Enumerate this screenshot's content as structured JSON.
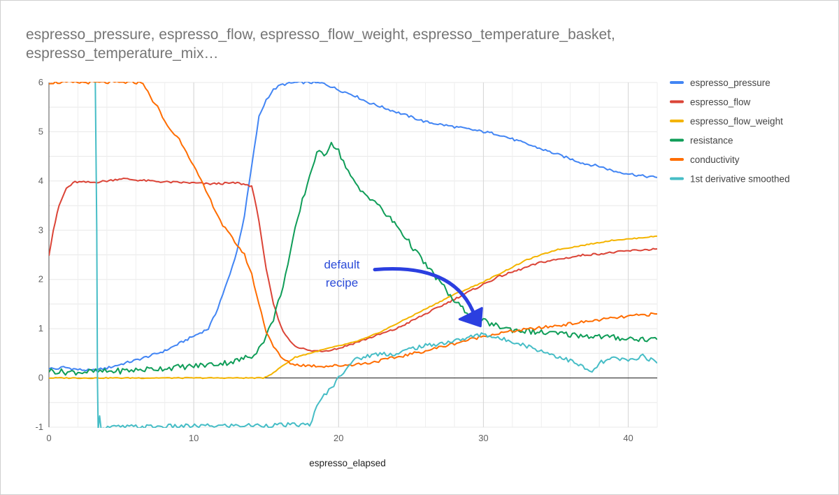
{
  "title": "espresso_pressure, espresso_flow, espresso_flow_weight, espresso_temperature_basket, espresso_temperature_mix…",
  "chart_data": {
    "type": "line",
    "title": "espresso_pressure, espresso_flow, espresso_flow_weight, espresso_temperature_basket, espresso_temperature_mix…",
    "xlabel": "espresso_elapsed",
    "ylabel": "",
    "xlim": [
      0,
      42
    ],
    "ylim": [
      -1,
      6
    ],
    "xticks": [
      0,
      10,
      20,
      30,
      40
    ],
    "yticks": [
      -1,
      0,
      1,
      2,
      3,
      4,
      5,
      6
    ],
    "grid": true,
    "legend_position": "right",
    "series": [
      {
        "name": "espresso_pressure",
        "color": "#4285f4",
        "points": [
          [
            0,
            0.2
          ],
          [
            0.5,
            0.18
          ],
          [
            1,
            0.22
          ],
          [
            2,
            0.17
          ],
          [
            3,
            0.15
          ],
          [
            4,
            0.2
          ],
          [
            5,
            0.28
          ],
          [
            6,
            0.36
          ],
          [
            7,
            0.45
          ],
          [
            8,
            0.55
          ],
          [
            9,
            0.7
          ],
          [
            10,
            0.85
          ],
          [
            11,
            1.0
          ],
          [
            11.5,
            1.3
          ],
          [
            12,
            1.7
          ],
          [
            12.5,
            2.1
          ],
          [
            13,
            2.6
          ],
          [
            13.5,
            3.3
          ],
          [
            14,
            4.3
          ],
          [
            14.5,
            5.3
          ],
          [
            15,
            5.65
          ],
          [
            15.5,
            5.85
          ],
          [
            16,
            5.95
          ],
          [
            17,
            6.0
          ],
          [
            18,
            6.0
          ],
          [
            19,
            5.98
          ],
          [
            20,
            5.85
          ],
          [
            21,
            5.75
          ],
          [
            22,
            5.6
          ],
          [
            23,
            5.5
          ],
          [
            24,
            5.4
          ],
          [
            25,
            5.3
          ],
          [
            26,
            5.2
          ],
          [
            27,
            5.15
          ],
          [
            28,
            5.1
          ],
          [
            29,
            5.05
          ],
          [
            30,
            5.0
          ],
          [
            31,
            4.95
          ],
          [
            32,
            4.85
          ],
          [
            33,
            4.75
          ],
          [
            34,
            4.65
          ],
          [
            35,
            4.55
          ],
          [
            36,
            4.45
          ],
          [
            37,
            4.35
          ],
          [
            38,
            4.3
          ],
          [
            39,
            4.2
          ],
          [
            40,
            4.15
          ],
          [
            41,
            4.1
          ],
          [
            42,
            4.07
          ]
        ]
      },
      {
        "name": "espresso_flow",
        "color": "#db4437",
        "points": [
          [
            0,
            2.5
          ],
          [
            0.3,
            3.0
          ],
          [
            0.7,
            3.5
          ],
          [
            1.2,
            3.85
          ],
          [
            1.8,
            3.98
          ],
          [
            3,
            3.97
          ],
          [
            4,
            4.0
          ],
          [
            5,
            4.05
          ],
          [
            6,
            4.02
          ],
          [
            7,
            4.0
          ],
          [
            8,
            3.98
          ],
          [
            9,
            3.97
          ],
          [
            10,
            3.96
          ],
          [
            11,
            3.94
          ],
          [
            12,
            3.95
          ],
          [
            13,
            3.96
          ],
          [
            14,
            3.9
          ],
          [
            14.5,
            3.2
          ],
          [
            15,
            2.2
          ],
          [
            15.5,
            1.5
          ],
          [
            16,
            1.05
          ],
          [
            16.5,
            0.8
          ],
          [
            17,
            0.65
          ],
          [
            18,
            0.55
          ],
          [
            19,
            0.55
          ],
          [
            20,
            0.6
          ],
          [
            21,
            0.7
          ],
          [
            22,
            0.8
          ],
          [
            23,
            0.9
          ],
          [
            24,
            1.0
          ],
          [
            25,
            1.15
          ],
          [
            26,
            1.3
          ],
          [
            27,
            1.45
          ],
          [
            28,
            1.6
          ],
          [
            29,
            1.75
          ],
          [
            30,
            1.9
          ],
          [
            31,
            2.05
          ],
          [
            32,
            2.15
          ],
          [
            33,
            2.25
          ],
          [
            34,
            2.35
          ],
          [
            35,
            2.4
          ],
          [
            36,
            2.45
          ],
          [
            37,
            2.5
          ],
          [
            38,
            2.52
          ],
          [
            39,
            2.55
          ],
          [
            40,
            2.58
          ],
          [
            41,
            2.6
          ],
          [
            42,
            2.62
          ]
        ]
      },
      {
        "name": "espresso_flow_weight",
        "color": "#f4b400",
        "points": [
          [
            0,
            0.0
          ],
          [
            5,
            0.0
          ],
          [
            10,
            0.0
          ],
          [
            14.8,
            0.0
          ],
          [
            15.5,
            0.1
          ],
          [
            16,
            0.22
          ],
          [
            16.5,
            0.32
          ],
          [
            17,
            0.42
          ],
          [
            18,
            0.5
          ],
          [
            19,
            0.58
          ],
          [
            20,
            0.65
          ],
          [
            21,
            0.72
          ],
          [
            22,
            0.82
          ],
          [
            23,
            0.95
          ],
          [
            24,
            1.1
          ],
          [
            25,
            1.25
          ],
          [
            26,
            1.4
          ],
          [
            27,
            1.55
          ],
          [
            28,
            1.7
          ],
          [
            29,
            1.82
          ],
          [
            30,
            1.95
          ],
          [
            31,
            2.1
          ],
          [
            32,
            2.25
          ],
          [
            33,
            2.4
          ],
          [
            34,
            2.5
          ],
          [
            35,
            2.6
          ],
          [
            36,
            2.65
          ],
          [
            37,
            2.7
          ],
          [
            38,
            2.75
          ],
          [
            39,
            2.8
          ],
          [
            40,
            2.82
          ],
          [
            41,
            2.85
          ],
          [
            42,
            2.88
          ]
        ]
      },
      {
        "name": "resistance",
        "color": "#0f9d58",
        "points": [
          [
            0,
            0.15
          ],
          [
            1,
            0.12
          ],
          [
            2,
            0.12
          ],
          [
            4,
            0.13
          ],
          [
            6,
            0.16
          ],
          [
            8,
            0.2
          ],
          [
            10,
            0.24
          ],
          [
            12,
            0.3
          ],
          [
            13,
            0.35
          ],
          [
            14,
            0.45
          ],
          [
            14.5,
            0.6
          ],
          [
            15,
            0.85
          ],
          [
            15.5,
            1.2
          ],
          [
            16,
            1.7
          ],
          [
            16.5,
            2.3
          ],
          [
            17,
            3.0
          ],
          [
            17.5,
            3.6
          ],
          [
            18,
            4.1
          ],
          [
            18.5,
            4.6
          ],
          [
            19,
            4.5
          ],
          [
            19.5,
            4.8
          ],
          [
            20,
            4.6
          ],
          [
            20.5,
            4.3
          ],
          [
            21,
            4.0
          ],
          [
            21.5,
            3.8
          ],
          [
            22,
            3.7
          ],
          [
            22.5,
            3.6
          ],
          [
            23,
            3.4
          ],
          [
            24,
            3.1
          ],
          [
            25,
            2.7
          ],
          [
            26,
            2.3
          ],
          [
            27,
            1.95
          ],
          [
            28,
            1.55
          ],
          [
            29,
            1.3
          ],
          [
            30,
            1.15
          ],
          [
            31,
            1.05
          ],
          [
            32,
            0.98
          ],
          [
            33,
            0.95
          ],
          [
            34,
            0.92
          ],
          [
            35,
            0.9
          ],
          [
            36,
            0.88
          ],
          [
            37,
            0.86
          ],
          [
            38,
            0.84
          ],
          [
            39,
            0.82
          ],
          [
            40,
            0.8
          ],
          [
            41,
            0.79
          ],
          [
            42,
            0.78
          ]
        ]
      },
      {
        "name": "conductivity",
        "color": "#ff6d00",
        "points": [
          [
            0,
            6.0
          ],
          [
            6.5,
            6.0
          ],
          [
            7,
            5.7
          ],
          [
            7.5,
            5.5
          ],
          [
            8,
            5.2
          ],
          [
            8.5,
            5.0
          ],
          [
            9,
            4.85
          ],
          [
            9.5,
            4.6
          ],
          [
            10,
            4.3
          ],
          [
            10.5,
            4.0
          ],
          [
            11,
            3.7
          ],
          [
            11.5,
            3.4
          ],
          [
            12,
            3.1
          ],
          [
            12.5,
            2.9
          ],
          [
            13,
            2.7
          ],
          [
            13.5,
            2.5
          ],
          [
            14,
            2.1
          ],
          [
            14.5,
            1.5
          ],
          [
            15,
            0.95
          ],
          [
            15.5,
            0.65
          ],
          [
            16,
            0.42
          ],
          [
            16.5,
            0.32
          ],
          [
            17,
            0.27
          ],
          [
            18,
            0.25
          ],
          [
            19,
            0.24
          ],
          [
            20,
            0.25
          ],
          [
            22,
            0.3
          ],
          [
            24,
            0.42
          ],
          [
            26,
            0.55
          ],
          [
            28,
            0.7
          ],
          [
            30,
            0.85
          ],
          [
            32,
            0.95
          ],
          [
            34,
            1.02
          ],
          [
            36,
            1.1
          ],
          [
            38,
            1.18
          ],
          [
            40,
            1.25
          ],
          [
            41,
            1.28
          ],
          [
            42,
            1.3
          ]
        ]
      },
      {
        "name": "1st derivative smoothed",
        "color": "#46bdc6",
        "points": [
          [
            3.2,
            6.0
          ],
          [
            3.3,
            3.0
          ],
          [
            3.35,
            0.0
          ],
          [
            3.4,
            -1.0
          ],
          [
            3.5,
            -0.8
          ],
          [
            3.6,
            -1.0
          ],
          [
            18,
            -0.95
          ],
          [
            18.5,
            -0.6
          ],
          [
            19,
            -0.35
          ],
          [
            19.5,
            -0.2
          ],
          [
            20,
            0.0
          ],
          [
            20.5,
            0.2
          ],
          [
            21,
            0.35
          ],
          [
            22,
            0.45
          ],
          [
            23,
            0.5
          ],
          [
            24,
            0.48
          ],
          [
            25,
            0.6
          ],
          [
            26,
            0.65
          ],
          [
            27,
            0.7
          ],
          [
            28,
            0.75
          ],
          [
            29,
            0.82
          ],
          [
            30,
            0.9
          ],
          [
            31,
            0.8
          ],
          [
            32,
            0.75
          ],
          [
            33,
            0.65
          ],
          [
            34,
            0.55
          ],
          [
            35,
            0.45
          ],
          [
            36,
            0.35
          ],
          [
            37,
            0.2
          ],
          [
            37.5,
            0.1
          ],
          [
            38,
            0.3
          ],
          [
            39,
            0.4
          ],
          [
            40,
            0.35
          ],
          [
            41,
            0.45
          ],
          [
            42,
            0.3
          ]
        ]
      }
    ],
    "annotations": [
      {
        "text_lines": [
          "default",
          "recipe"
        ],
        "arrow_from": [
          22.5,
          2.2
        ],
        "arrow_to": [
          29.8,
          1.05
        ]
      }
    ]
  }
}
